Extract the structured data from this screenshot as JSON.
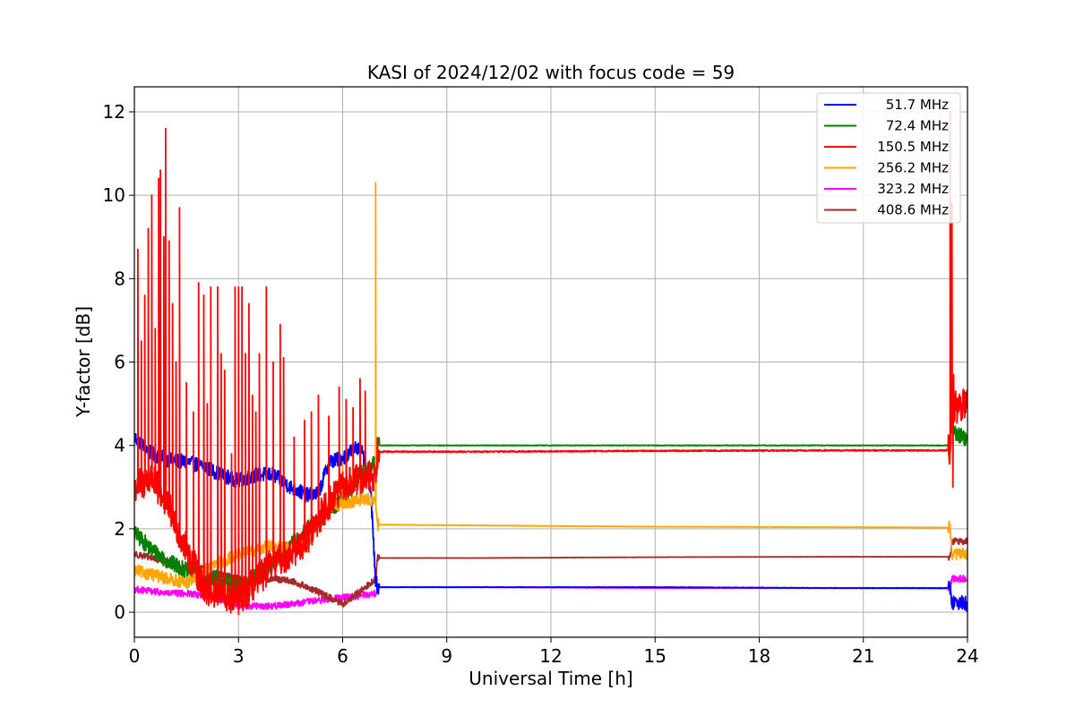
{
  "chart_data": {
    "type": "line",
    "title": "KASI of 2024/12/02 with focus code = 59",
    "xlabel": "Universal Time [h]",
    "ylabel": "Y-factor [dB]",
    "xlim": [
      0,
      24
    ],
    "ylim": [
      -0.6,
      12.6
    ],
    "xticks": [
      0,
      3,
      6,
      9,
      12,
      15,
      18,
      21,
      24
    ],
    "yticks": [
      0,
      2,
      4,
      6,
      8,
      10,
      12
    ],
    "grid": true,
    "legend_position": "top-right",
    "series": [
      {
        "name": "51.7 MHz",
        "color": "#0000ff",
        "x": [
          0,
          0.5,
          1,
          1.5,
          2,
          2.5,
          3,
          3.5,
          4,
          4.5,
          5,
          5.3,
          5.6,
          6,
          6.3,
          6.5,
          6.8,
          6.95,
          7.0,
          10,
          15,
          20,
          23.5,
          23.55,
          24
        ],
        "y": [
          4.2,
          3.8,
          3.65,
          3.6,
          3.5,
          3.3,
          3.15,
          3.3,
          3.3,
          3.0,
          2.8,
          2.85,
          3.6,
          3.7,
          3.9,
          4.0,
          3.0,
          0.8,
          0.6,
          0.6,
          0.6,
          0.58,
          0.58,
          0.25,
          0.2
        ],
        "noise": 0.18
      },
      {
        "name": "72.4 MHz",
        "color": "#008000",
        "x": [
          0,
          0.5,
          1,
          1.5,
          2,
          2.5,
          3,
          3.5,
          4,
          5,
          6,
          6.5,
          6.95,
          7.0,
          10,
          15,
          20,
          23.5,
          23.55,
          24
        ],
        "y": [
          1.9,
          1.5,
          1.2,
          1.0,
          0.9,
          0.8,
          0.6,
          0.9,
          1.2,
          2.0,
          2.7,
          3.3,
          3.6,
          4.0,
          4.0,
          4.0,
          4.0,
          4.0,
          4.4,
          4.1
        ],
        "noise": 0.2
      },
      {
        "name": "150.5 MHz",
        "color": "#ff0000",
        "x": [
          0,
          0.5,
          1,
          1.5,
          2,
          2.5,
          3,
          3.5,
          4,
          4.5,
          5,
          5.5,
          6,
          6.5,
          6.95,
          7.0,
          10,
          15,
          20,
          23.5,
          23.55,
          24
        ],
        "y": [
          3.0,
          3.2,
          2.5,
          1.5,
          0.6,
          0.4,
          0.3,
          0.7,
          1.2,
          1.4,
          1.8,
          2.5,
          3.0,
          3.2,
          3.3,
          3.85,
          3.85,
          3.87,
          3.88,
          3.88,
          4.9,
          5.0
        ],
        "noise": 0.4,
        "spikes": [
          [
            0.1,
            8.7
          ],
          [
            0.2,
            6.5
          ],
          [
            0.3,
            7.6
          ],
          [
            0.4,
            9.2
          ],
          [
            0.5,
            10.0
          ],
          [
            0.6,
            6.8
          ],
          [
            0.7,
            10.4
          ],
          [
            0.75,
            10.6
          ],
          [
            0.85,
            9.0
          ],
          [
            0.9,
            11.6
          ],
          [
            1.0,
            8.9
          ],
          [
            1.1,
            7.4
          ],
          [
            1.2,
            6.0
          ],
          [
            1.3,
            9.7
          ],
          [
            1.5,
            5.5
          ],
          [
            1.7,
            4.8
          ],
          [
            1.85,
            7.9
          ],
          [
            2.0,
            7.6
          ],
          [
            2.1,
            5.0
          ],
          [
            2.2,
            7.8
          ],
          [
            2.4,
            7.8
          ],
          [
            2.5,
            6.2
          ],
          [
            2.6,
            5.8
          ],
          [
            2.8,
            3.8
          ],
          [
            2.9,
            7.8
          ],
          [
            3.0,
            7.8
          ],
          [
            3.1,
            7.8
          ],
          [
            3.2,
            6.2
          ],
          [
            3.3,
            7.4
          ],
          [
            3.4,
            5.2
          ],
          [
            3.5,
            4.8
          ],
          [
            3.6,
            6.2
          ],
          [
            3.8,
            7.8
          ],
          [
            4.0,
            6.0
          ],
          [
            4.2,
            6.9
          ],
          [
            4.3,
            6.1
          ],
          [
            4.6,
            4.2
          ],
          [
            4.9,
            4.6
          ],
          [
            5.1,
            4.8
          ],
          [
            5.3,
            5.2
          ],
          [
            5.6,
            4.7
          ],
          [
            5.9,
            5.4
          ],
          [
            6.1,
            5.1
          ],
          [
            6.3,
            4.9
          ],
          [
            6.5,
            5.6
          ],
          [
            6.65,
            5.3
          ],
          [
            23.5,
            12.0
          ],
          [
            23.55,
            9.8
          ],
          [
            23.58,
            3.0
          ],
          [
            23.6,
            5.7
          ]
        ]
      },
      {
        "name": "256.2 MHz",
        "color": "#ffa500",
        "x": [
          0,
          0.5,
          1,
          1.5,
          2,
          2.5,
          3,
          3.5,
          4,
          4.5,
          5,
          5.5,
          6,
          6.5,
          6.95,
          7.0,
          10,
          15,
          20,
          23.5,
          23.55,
          24
        ],
        "y": [
          1.0,
          0.9,
          0.8,
          0.7,
          1.0,
          1.2,
          1.4,
          1.5,
          1.6,
          1.5,
          1.6,
          2.5,
          2.6,
          2.7,
          2.7,
          2.1,
          2.08,
          2.05,
          2.04,
          2.03,
          1.4,
          1.4
        ],
        "noise": 0.15,
        "spikes": [
          [
            2.5,
            2.5
          ],
          [
            2.9,
            2.6
          ],
          [
            3.4,
            2.7
          ],
          [
            5.3,
            3.5
          ],
          [
            6.0,
            3.6
          ],
          [
            6.5,
            3.4
          ],
          [
            6.95,
            10.3
          ]
        ]
      },
      {
        "name": "323.2 MHz",
        "color": "#ff00ff",
        "x": [
          0,
          0.5,
          1,
          1.5,
          2,
          2.5,
          3,
          3.5,
          4,
          4.5,
          5,
          5.5,
          6,
          6.5,
          6.95,
          7.0,
          10,
          15,
          20,
          23.5,
          23.55,
          24
        ],
        "y": [
          0.55,
          0.5,
          0.45,
          0.45,
          0.4,
          0.3,
          0.15,
          0.15,
          0.15,
          0.2,
          0.25,
          0.3,
          0.35,
          0.4,
          0.45,
          0.6,
          0.6,
          0.58,
          0.58,
          0.57,
          0.8,
          0.8
        ],
        "noise": 0.08
      },
      {
        "name": "408.6 MHz",
        "color": "#a52a2a",
        "x": [
          0,
          0.5,
          1,
          1.5,
          2,
          2.5,
          3,
          3.5,
          4,
          4.5,
          5,
          5.5,
          6,
          6.5,
          6.95,
          7.0,
          10,
          15,
          20,
          23.5,
          23.55,
          24
        ],
        "y": [
          1.4,
          1.3,
          1.2,
          1.05,
          0.95,
          0.9,
          0.8,
          0.75,
          0.8,
          0.75,
          0.6,
          0.4,
          0.2,
          0.5,
          0.8,
          1.3,
          1.3,
          1.32,
          1.33,
          1.33,
          1.7,
          1.7
        ],
        "noise": 0.08
      }
    ]
  }
}
